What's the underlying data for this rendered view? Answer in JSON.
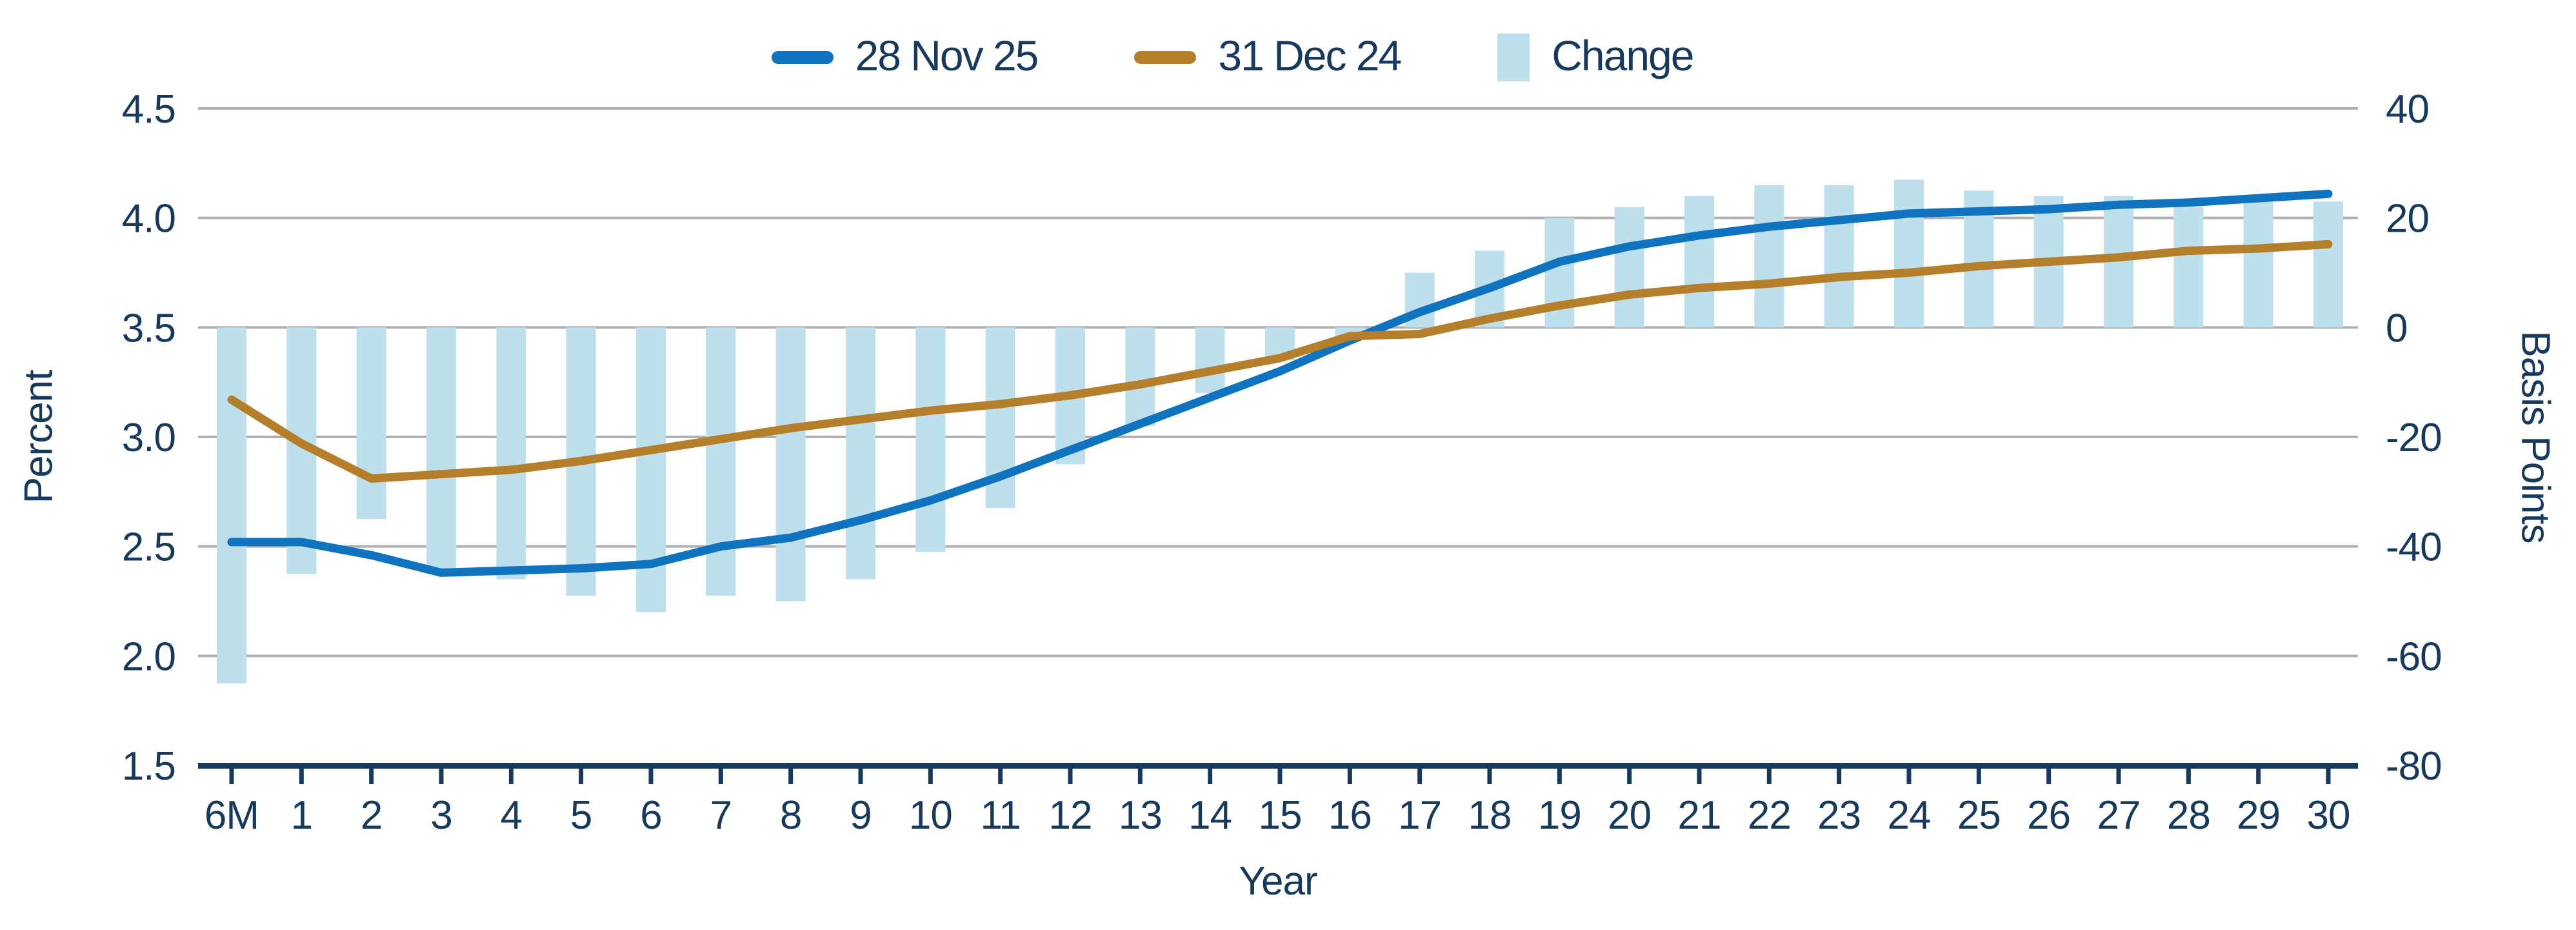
{
  "chart_data": {
    "type": "line+bar",
    "title": "",
    "xlabel": "Year",
    "categories": [
      "6M",
      "1",
      "2",
      "3",
      "4",
      "5",
      "6",
      "7",
      "8",
      "9",
      "10",
      "11",
      "12",
      "13",
      "14",
      "15",
      "16",
      "17",
      "18",
      "19",
      "20",
      "21",
      "22",
      "23",
      "24",
      "25",
      "26",
      "27",
      "28",
      "29",
      "30"
    ],
    "series": [
      {
        "name": "28 Nov 25",
        "type": "line",
        "axis": "left",
        "color": "#0f73c0",
        "values": [
          2.52,
          2.52,
          2.46,
          2.38,
          2.39,
          2.4,
          2.42,
          2.5,
          2.54,
          2.62,
          2.71,
          2.82,
          2.94,
          3.06,
          3.18,
          3.3,
          3.44,
          3.57,
          3.68,
          3.8,
          3.87,
          3.92,
          3.96,
          3.99,
          4.02,
          4.03,
          4.04,
          4.06,
          4.07,
          4.09,
          4.11
        ]
      },
      {
        "name": "31 Dec 24",
        "type": "line",
        "axis": "left",
        "color": "#b57e2b",
        "values": [
          3.17,
          2.97,
          2.81,
          2.83,
          2.85,
          2.89,
          2.94,
          2.99,
          3.04,
          3.08,
          3.12,
          3.15,
          3.19,
          3.24,
          3.3,
          3.36,
          3.46,
          3.47,
          3.54,
          3.6,
          3.65,
          3.68,
          3.7,
          3.73,
          3.75,
          3.78,
          3.8,
          3.82,
          3.85,
          3.86,
          3.88
        ]
      },
      {
        "name": "Change",
        "type": "bar",
        "axis": "right",
        "color": "#bee0ec",
        "values": [
          -65,
          -45,
          -35,
          -45,
          -46,
          -49,
          -52,
          -49,
          -50,
          -46,
          -41,
          -33,
          -25,
          -18,
          -12,
          -6,
          -2,
          10,
          14,
          20,
          22,
          24,
          26,
          26,
          27,
          25,
          24,
          24,
          22,
          23,
          23
        ]
      }
    ],
    "left_axis": {
      "label": "Percent",
      "min": 1.5,
      "max": 4.5,
      "tick_labels": [
        "4.5",
        "4.0",
        "3.5",
        "3.0",
        "2.5",
        "2.0",
        "1.5"
      ]
    },
    "right_axis": {
      "label": "Basis Points",
      "min": -80,
      "max": 40,
      "tick_labels": [
        "40",
        "20",
        "0",
        "-20",
        "-40",
        "-60",
        "-80"
      ]
    },
    "grid": true,
    "legend_position": "top",
    "colors": {
      "text": "#17395c",
      "gridline": "#b1b1b1",
      "axis_line": "#17395c",
      "background": "#ffffff"
    }
  }
}
